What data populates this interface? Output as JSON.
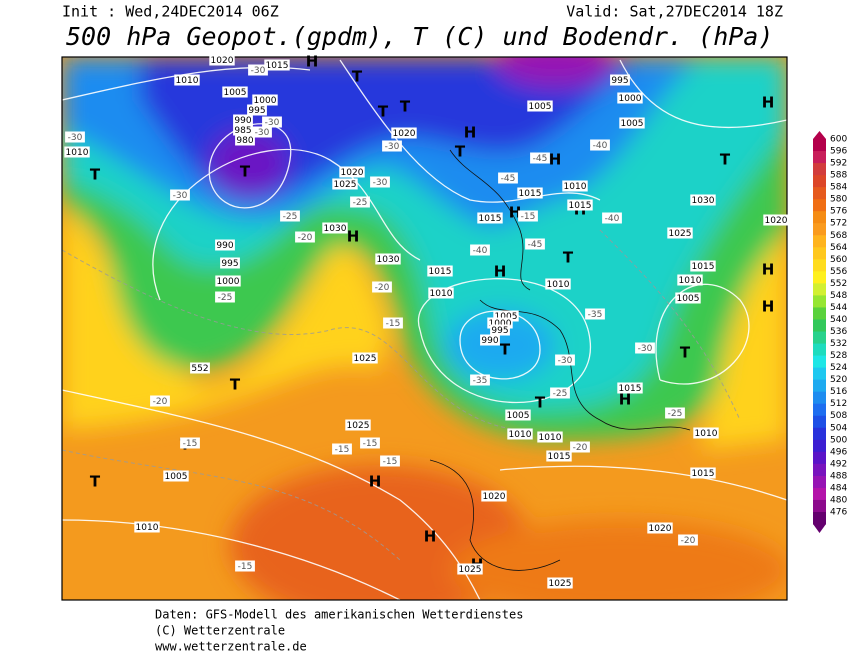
{
  "header": {
    "init": "Init : Wed,24DEC2014 06Z",
    "valid": "Valid: Sat,27DEC2014 18Z",
    "title": "500 hPa Geopot.(gpdm), T (C) und Bodendr. (hPa)"
  },
  "colorbar": {
    "levels": [
      600,
      596,
      592,
      588,
      584,
      580,
      576,
      572,
      568,
      564,
      560,
      556,
      552,
      548,
      544,
      540,
      536,
      532,
      528,
      524,
      520,
      516,
      512,
      508,
      504,
      500,
      496,
      492,
      488,
      484,
      480,
      476
    ],
    "colors": [
      "#b4004b",
      "#c81e5a",
      "#d23c3c",
      "#dc4628",
      "#e65a1e",
      "#f06e14",
      "#f58c14",
      "#fa9b1e",
      "#ffb41e",
      "#ffc81e",
      "#ffdc1e",
      "#fff01e",
      "#d2f032",
      "#96e632",
      "#5ad23c",
      "#32c85a",
      "#28d28c",
      "#1edcbe",
      "#1ee6e6",
      "#1ec8f0",
      "#1eaaf0",
      "#1e8cf0",
      "#1e6ef0",
      "#1e50e6",
      "#2832dc",
      "#3c1ed2",
      "#5a14c8",
      "#7814be",
      "#9614b4",
      "#b414aa",
      "#8c0a8c",
      "#64006e"
    ]
  },
  "map_labels": [
    "T",
    "T",
    "T",
    "T",
    "T",
    "H",
    "H",
    "H",
    "T",
    "H",
    "T",
    "H",
    "T",
    "H",
    "T",
    "T",
    "T",
    "H",
    "T",
    "H",
    "T",
    "H",
    "H",
    "T",
    "H",
    "H",
    "H",
    "H",
    "1010",
    "1005",
    "1000",
    "995",
    "990",
    "985",
    "980",
    "1010",
    "1020",
    "1015",
    "1020",
    "1020",
    "1025",
    "1030",
    "1030",
    "990",
    "995",
    "1000",
    "552",
    "1025",
    "1025",
    "1005",
    "1010",
    "1020",
    "1025",
    "1025",
    "1010",
    "1010",
    "1015",
    "1005",
    "1015",
    "1010",
    "1005",
    "1000",
    "995",
    "990",
    "1015",
    "1015",
    "1010",
    "1015",
    "1010",
    "1005",
    "1000",
    "1005",
    "995",
    "1030",
    "1025",
    "1015",
    "1010",
    "1005",
    "1015",
    "1010",
    "1015",
    "1020",
    "1020",
    "-30",
    "-30",
    "-25",
    "-20",
    "-15",
    "-15",
    "-15",
    "-15",
    "-15",
    "-20",
    "-15",
    "-20",
    "-25",
    "-25",
    "-30",
    "-30",
    "-20",
    "-35",
    "-30",
    "-35",
    "-30",
    "-25",
    "-20",
    "-25",
    "-40",
    "-40",
    "-45",
    "-45",
    "-45",
    "-40",
    "-15",
    "-30",
    "-30",
    "-30"
  ],
  "footer": [
    "Daten: GFS-Modell des amerikanischen Wetterdienstes",
    "(C) Wetterzentrale",
    "www.wetterzentrale.de"
  ]
}
